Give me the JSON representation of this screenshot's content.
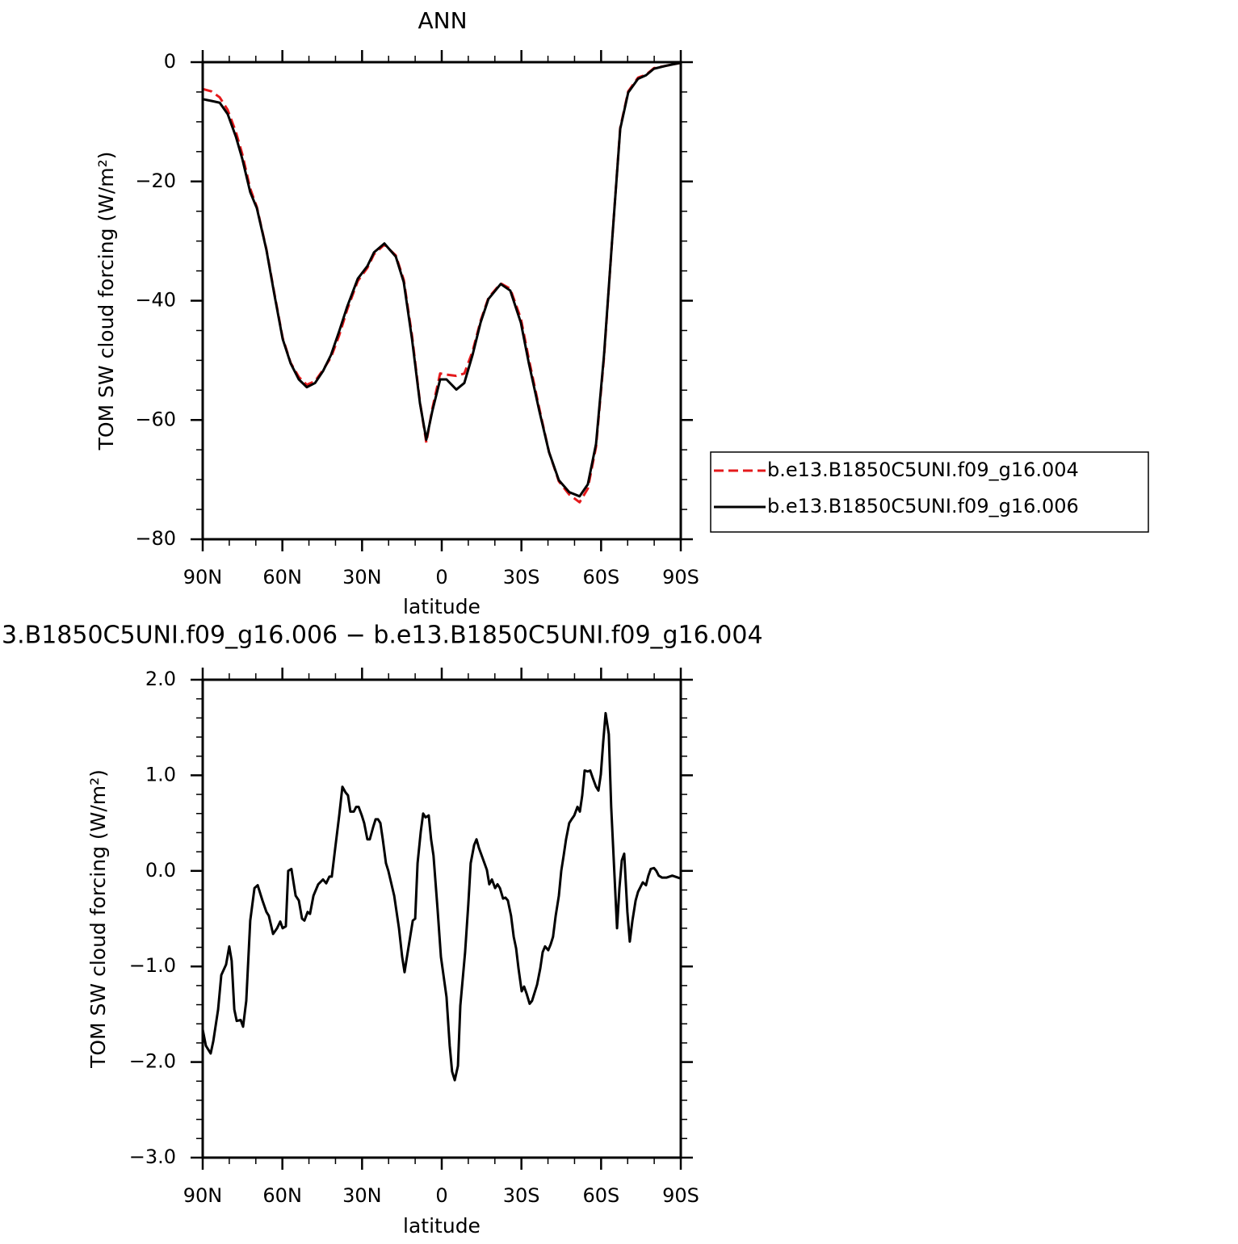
{
  "chart_data": [
    {
      "type": "line",
      "title": "ANN",
      "xlabel": "latitude",
      "ylabel": "TOM SW cloud forcing (W/m²)",
      "x": [
        90,
        86.7,
        83.6,
        80.6,
        77.5,
        75.1,
        72.1,
        69.6,
        66,
        63,
        59.9,
        56.9,
        53.8,
        50.8,
        47.7,
        44.7,
        41.7,
        38.6,
        35.6,
        31.6,
        28,
        25.5,
        21.6,
        17.3,
        14.3,
        11.2,
        8.2,
        5.8,
        3.6,
        0.6,
        -1.8,
        -5.5,
        -8.5,
        -11.6,
        -14.6,
        -17.6,
        -22.2,
        -25.8,
        -29.8,
        -32.8,
        -36.8,
        -40.4,
        -44.1,
        -48,
        -51.9,
        -55,
        -58.1,
        -61.1,
        -64.1,
        -67.2,
        -70.2,
        -73.9,
        -76.9,
        -79.9,
        -84.5,
        -90
      ],
      "series": [
        {
          "name": "b.e13.B1850C5UNI.f09_g16.004",
          "color": "#e41a1c",
          "line_style": "dashed",
          "values": [
            -4.5,
            -4.9,
            -5.9,
            -8,
            -11.7,
            -15.4,
            -21.2,
            -24.3,
            -31.4,
            -38.8,
            -46.2,
            -50.4,
            -52.8,
            -54.1,
            -53.5,
            -51.6,
            -49.5,
            -45.8,
            -41.5,
            -36.7,
            -34.5,
            -32.2,
            -30.6,
            -32.4,
            -36.5,
            -45.8,
            -57,
            -63.8,
            -58.2,
            -52.2,
            -52.4,
            -52.6,
            -52.2,
            -48.5,
            -43.4,
            -39.5,
            -37.1,
            -38,
            -43,
            -49.8,
            -58.2,
            -65.4,
            -70.3,
            -72.5,
            -73.8,
            -71.5,
            -64.5,
            -49.5,
            -30.2,
            -11,
            -4.9,
            -2.6,
            -2.1,
            -1,
            -0.6,
            -0.1
          ]
        },
        {
          "name": "b.e13.B1850C5UNI.f09_g16.006",
          "color": "#000000",
          "line_style": "solid",
          "values": [
            -6.2,
            -6.5,
            -6.8,
            -8.7,
            -12.5,
            -16.2,
            -21.8,
            -24.5,
            -31.5,
            -39,
            -46.4,
            -50.5,
            -53.2,
            -54.5,
            -53.8,
            -51.8,
            -49.1,
            -45.1,
            -41,
            -36.3,
            -34.2,
            -31.9,
            -30.4,
            -32.6,
            -36.9,
            -46.4,
            -57.2,
            -63.3,
            -58.6,
            -53.2,
            -53.2,
            -54.9,
            -53.8,
            -49.1,
            -43.7,
            -39.7,
            -37.2,
            -38.3,
            -43.7,
            -50.5,
            -58.6,
            -65.4,
            -70.1,
            -72.1,
            -72.8,
            -70.8,
            -64,
            -49.1,
            -30.2,
            -11.2,
            -5.1,
            -2.8,
            -2.2,
            -1.1,
            -0.6,
            -0.1
          ]
        }
      ],
      "xlim": [
        90,
        -90
      ],
      "xticks": [
        {
          "value": 90,
          "label": "90N"
        },
        {
          "value": 60,
          "label": "60N"
        },
        {
          "value": 30,
          "label": "30N"
        },
        0,
        {
          "value": -30,
          "label": "30S"
        },
        {
          "value": -60,
          "label": "60S"
        },
        {
          "value": -90,
          "label": "90S"
        }
      ],
      "ylim": [
        -80,
        0
      ],
      "yticks": [
        0,
        {
          "value": -20,
          "label": "−20"
        },
        {
          "value": -40,
          "label": "−40"
        },
        {
          "value": -60,
          "label": "−60"
        },
        {
          "value": -80,
          "label": "−80"
        }
      ],
      "legend": "right"
    },
    {
      "type": "line",
      "title": "3.B1850C5UNI.f09_g16.006 − b.e13.B1850C5UNI.f09_g16.004",
      "xlabel": "latitude",
      "ylabel": "TOM SW cloud forcing (W/m²)",
      "x": [
        90,
        88.8,
        87,
        86,
        84.2,
        83,
        81.2,
        80,
        79.1,
        78.1,
        77.2,
        75.7,
        74.8,
        73.6,
        72.1,
        70.5,
        69.3,
        67.5,
        66,
        65.1,
        63.5,
        62,
        60.8,
        59.9,
        58.7,
        57.8,
        56.6,
        55,
        53.8,
        52.6,
        51.7,
        50.5,
        49.6,
        48.3,
        46.5,
        44.7,
        43.5,
        42.3,
        41.4,
        40.1,
        38.6,
        37.4,
        36.2,
        35.3,
        34.4,
        33.1,
        32.2,
        31.3,
        30.1,
        29.2,
        28,
        27.1,
        25.8,
        24.9,
        24,
        23.1,
        22.2,
        21,
        20.1,
        17.9,
        16.1,
        14.9,
        14,
        13.1,
        10.9,
        10,
        9.1,
        7.9,
        7,
        6.1,
        4.9,
        4,
        3.1,
        1.6,
        0.3,
        -1.8,
        -3,
        -3.9,
        -4.9,
        -6.1,
        -7,
        -8.8,
        -10,
        -10.9,
        -12.2,
        -13.1,
        -14,
        -16.1,
        -17,
        -17.9,
        -18.9,
        -20.1,
        -21,
        -21.9,
        -23.1,
        -24,
        -24.9,
        -26.1,
        -27.1,
        -28,
        -28.9,
        -30.1,
        -31,
        -31.9,
        -33.1,
        -34,
        -34.9,
        -35.9,
        -37.1,
        -38,
        -38.9,
        -40.1,
        -41,
        -41.9,
        -42.9,
        -44.1,
        -45,
        -45.9,
        -46.8,
        -48,
        -48.9,
        -49.9,
        -51.1,
        -52,
        -52.9,
        -53.8,
        -55,
        -55.9,
        -56.9,
        -58.1,
        -59,
        -59.9,
        -60.8,
        -61.7,
        -62.9,
        -63.8,
        -66,
        -66.9,
        -67.8,
        -68.7,
        -69.9,
        -70.8,
        -71.8,
        -73,
        -73.9,
        -75.7,
        -76.9,
        -77.8,
        -78.7,
        -79.9,
        -80.8,
        -81.7,
        -82.9,
        -84.7,
        -86.8,
        -90
      ],
      "series": [
        {
          "color": "#000000",
          "line_style": "solid",
          "values": [
            -1.66,
            -1.83,
            -1.91,
            -1.78,
            -1.45,
            -1.09,
            -0.98,
            -0.79,
            -0.94,
            -1.45,
            -1.57,
            -1.56,
            -1.63,
            -1.36,
            -0.52,
            -0.18,
            -0.15,
            -0.31,
            -0.43,
            -0.47,
            -0.66,
            -0.6,
            -0.53,
            -0.6,
            -0.58,
            0,
            0.02,
            -0.26,
            -0.31,
            -0.5,
            -0.52,
            -0.43,
            -0.45,
            -0.26,
            -0.14,
            -0.09,
            -0.13,
            -0.06,
            -0.06,
            0.24,
            0.58,
            0.88,
            0.82,
            0.79,
            0.62,
            0.62,
            0.67,
            0.67,
            0.58,
            0.5,
            0.33,
            0.33,
            0.46,
            0.54,
            0.54,
            0.5,
            0.33,
            0.08,
            0,
            -0.26,
            -0.6,
            -0.9,
            -1.06,
            -0.9,
            -0.52,
            -0.5,
            0.08,
            0.41,
            0.6,
            0.56,
            0.58,
            0.33,
            0.16,
            -0.39,
            -0.9,
            -1.32,
            -1.83,
            -2.1,
            -2.19,
            -2.04,
            -1.41,
            -0.85,
            -0.35,
            0.08,
            0.27,
            0.33,
            0.24,
            0.08,
            0.01,
            -0.14,
            -0.09,
            -0.18,
            -0.14,
            -0.18,
            -0.29,
            -0.28,
            -0.31,
            -0.47,
            -0.69,
            -0.81,
            -1.02,
            -1.26,
            -1.21,
            -1.28,
            -1.39,
            -1.36,
            -1.28,
            -1.19,
            -1.02,
            -0.85,
            -0.79,
            -0.83,
            -0.77,
            -0.69,
            -0.47,
            -0.26,
            0,
            0.16,
            0.33,
            0.5,
            0.54,
            0.58,
            0.67,
            0.62,
            0.79,
            1.05,
            1.04,
            1.05,
            0.97,
            0.88,
            0.84,
            1.01,
            1.35,
            1.65,
            1.43,
            0.67,
            -0.6,
            -0.18,
            0.11,
            0.18,
            -0.43,
            -0.74,
            -0.52,
            -0.31,
            -0.22,
            -0.12,
            -0.15,
            -0.05,
            0.02,
            0.03,
            0,
            -0.05,
            -0.07,
            -0.07,
            -0.05,
            -0.08
          ]
        }
      ],
      "xlim": [
        90,
        -90
      ],
      "xticks": [
        {
          "value": 90,
          "label": "90N"
        },
        {
          "value": 60,
          "label": "60N"
        },
        {
          "value": 30,
          "label": "30N"
        },
        0,
        {
          "value": -30,
          "label": "30S"
        },
        {
          "value": -60,
          "label": "60S"
        },
        {
          "value": -90,
          "label": "90S"
        }
      ],
      "ylim": [
        -3,
        2
      ],
      "yticks": [
        {
          "value": 2,
          "label": "2.0"
        },
        {
          "value": 1,
          "label": "1.0"
        },
        {
          "value": 0,
          "label": "0.0"
        },
        {
          "value": -1,
          "label": "−1.0"
        },
        {
          "value": -2,
          "label": "−2.0"
        },
        {
          "value": -3,
          "label": "−3.0"
        }
      ]
    }
  ]
}
